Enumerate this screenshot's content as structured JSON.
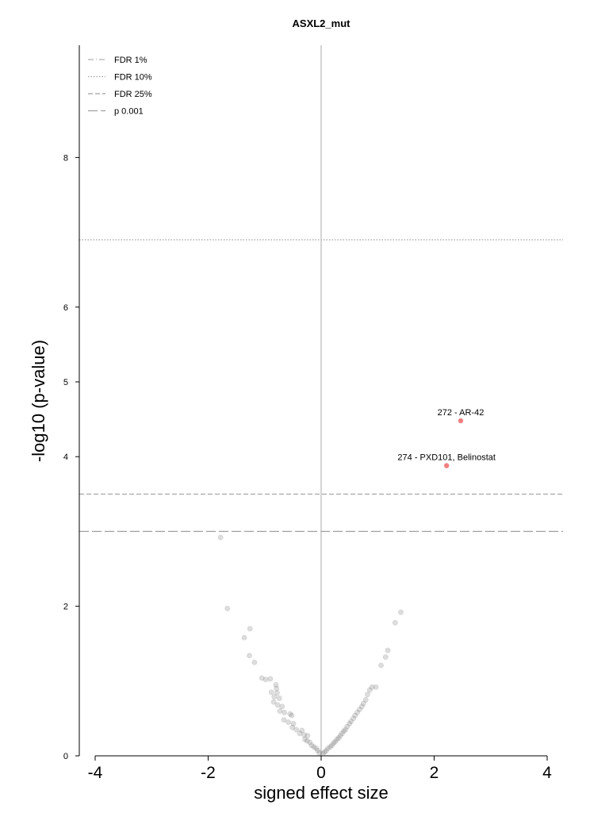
{
  "chart_data": {
    "type": "scatter",
    "title": "ASXL2_mut",
    "xlabel": "signed effect size",
    "ylabel": "-log10 (p-value)",
    "xlim": [
      -4.3,
      4.3
    ],
    "ylim": [
      0,
      9.5
    ],
    "xticks": [
      -4,
      -2,
      0,
      2,
      4
    ],
    "xtick_labels": [
      "-4",
      "-2",
      "0",
      "2",
      "4"
    ],
    "yticks": [
      0,
      2,
      4,
      5,
      6,
      8
    ],
    "ytick_labels": [
      "0",
      "2",
      "4",
      "5",
      "6",
      "8"
    ],
    "grid": false,
    "legend_position": "top-left",
    "thresholds": [
      {
        "label": "FDR 1%",
        "y": null,
        "style": "dashdot",
        "color": "#b0b0b0"
      },
      {
        "label": "FDR 10%",
        "y": 6.9,
        "style": "dotted",
        "color": "#a0a0a0"
      },
      {
        "label": "FDR 25%",
        "y": 3.5,
        "style": "dashed",
        "color": "#a0a0a0"
      },
      {
        "label": "p 0.001",
        "y": 3.0,
        "style": "longdash",
        "color": "#a0a0a0"
      }
    ],
    "highlight_color": "#f08080",
    "background_point_color": "#555555",
    "highlighted_points": [
      {
        "x": 2.47,
        "y": 4.48,
        "label": "272 - AR-42"
      },
      {
        "x": 2.22,
        "y": 3.88,
        "label": "274 - PXD101, Belinostat"
      }
    ],
    "background_points": [
      {
        "x": -1.78,
        "y": 2.92
      },
      {
        "x": -1.66,
        "y": 1.97
      },
      {
        "x": -1.26,
        "y": 1.7
      },
      {
        "x": -1.36,
        "y": 1.58
      },
      {
        "x": -1.27,
        "y": 1.34
      },
      {
        "x": -1.18,
        "y": 1.25
      },
      {
        "x": -1.05,
        "y": 1.04
      },
      {
        "x": -0.98,
        "y": 1.02
      },
      {
        "x": -0.9,
        "y": 1.03
      },
      {
        "x": -0.8,
        "y": 0.95
      },
      {
        "x": -0.79,
        "y": 0.9
      },
      {
        "x": -0.88,
        "y": 0.85
      },
      {
        "x": -0.78,
        "y": 0.84
      },
      {
        "x": -0.83,
        "y": 0.79
      },
      {
        "x": -0.74,
        "y": 0.77
      },
      {
        "x": -0.84,
        "y": 0.72
      },
      {
        "x": -0.77,
        "y": 0.68
      },
      {
        "x": -0.69,
        "y": 0.66
      },
      {
        "x": -0.73,
        "y": 0.6
      },
      {
        "x": -0.65,
        "y": 0.58
      },
      {
        "x": -0.55,
        "y": 0.56
      },
      {
        "x": -0.52,
        "y": 0.54
      },
      {
        "x": -0.66,
        "y": 0.48
      },
      {
        "x": -0.58,
        "y": 0.45
      },
      {
        "x": -0.49,
        "y": 0.43
      },
      {
        "x": -0.51,
        "y": 0.38
      },
      {
        "x": -0.44,
        "y": 0.35
      },
      {
        "x": -0.34,
        "y": 0.34
      },
      {
        "x": -0.38,
        "y": 0.3
      },
      {
        "x": -0.3,
        "y": 0.28
      },
      {
        "x": -0.24,
        "y": 0.27
      },
      {
        "x": -0.29,
        "y": 0.22
      },
      {
        "x": -0.25,
        "y": 0.2
      },
      {
        "x": -0.2,
        "y": 0.18
      },
      {
        "x": -0.17,
        "y": 0.14
      },
      {
        "x": -0.13,
        "y": 0.12
      },
      {
        "x": -0.09,
        "y": 0.1
      },
      {
        "x": -0.06,
        "y": 0.07
      },
      {
        "x": -0.03,
        "y": 0.04
      },
      {
        "x": 0.03,
        "y": 0.03
      },
      {
        "x": 0.06,
        "y": 0.05
      },
      {
        "x": 0.09,
        "y": 0.07
      },
      {
        "x": 0.12,
        "y": 0.1
      },
      {
        "x": 0.16,
        "y": 0.12
      },
      {
        "x": 0.19,
        "y": 0.14
      },
      {
        "x": 0.22,
        "y": 0.17
      },
      {
        "x": 0.25,
        "y": 0.19
      },
      {
        "x": 0.28,
        "y": 0.22
      },
      {
        "x": 0.31,
        "y": 0.24
      },
      {
        "x": 0.34,
        "y": 0.27
      },
      {
        "x": 0.37,
        "y": 0.3
      },
      {
        "x": 0.4,
        "y": 0.33
      },
      {
        "x": 0.43,
        "y": 0.35
      },
      {
        "x": 0.46,
        "y": 0.39
      },
      {
        "x": 0.5,
        "y": 0.43
      },
      {
        "x": 0.53,
        "y": 0.46
      },
      {
        "x": 0.57,
        "y": 0.5
      },
      {
        "x": 0.6,
        "y": 0.54
      },
      {
        "x": 0.64,
        "y": 0.58
      },
      {
        "x": 0.68,
        "y": 0.62
      },
      {
        "x": 0.72,
        "y": 0.66
      },
      {
        "x": 0.75,
        "y": 0.7
      },
      {
        "x": 0.79,
        "y": 0.75
      },
      {
        "x": 0.82,
        "y": 0.82
      },
      {
        "x": 0.86,
        "y": 0.88
      },
      {
        "x": 0.9,
        "y": 0.92
      },
      {
        "x": 0.97,
        "y": 0.92
      },
      {
        "x": 1.06,
        "y": 1.21
      },
      {
        "x": 1.14,
        "y": 1.32
      },
      {
        "x": 1.18,
        "y": 1.41
      },
      {
        "x": 1.31,
        "y": 1.78
      },
      {
        "x": 1.41,
        "y": 1.92
      }
    ]
  }
}
